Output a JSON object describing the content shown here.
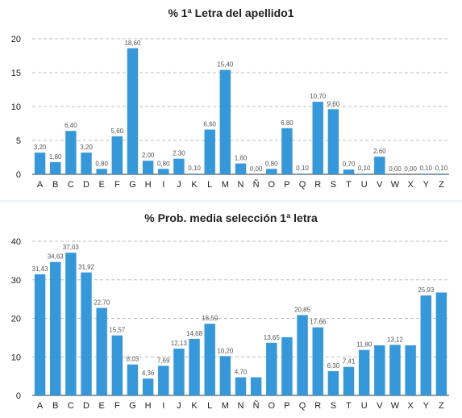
{
  "chart_data": [
    {
      "type": "bar",
      "title": "% 1ª Letra del apellido1",
      "categories": [
        "A",
        "B",
        "C",
        "D",
        "E",
        "F",
        "G",
        "H",
        "I",
        "J",
        "K",
        "L",
        "M",
        "N",
        "Ñ",
        "O",
        "P",
        "Q",
        "R",
        "S",
        "T",
        "U",
        "V",
        "W",
        "X",
        "Y",
        "Z"
      ],
      "values": [
        3.2,
        1.8,
        6.4,
        3.2,
        0.8,
        5.6,
        18.6,
        2.0,
        0.8,
        2.3,
        0.1,
        6.6,
        15.4,
        1.6,
        0.0,
        0.8,
        6.8,
        0.1,
        10.7,
        9.6,
        0.7,
        0.1,
        2.6,
        0.0,
        0.0,
        0.1,
        0.1
      ],
      "labels": [
        "3,20",
        "1,80",
        "6,40",
        "3,20",
        "0,80",
        "5,60",
        "18,60",
        "2,00",
        "0,80",
        "2,30",
        "0,10",
        "6,60",
        "15,40",
        "1,60",
        "0,00",
        "0,80",
        "6,80",
        "0,10",
        "10,70",
        "9,60",
        "0,70",
        "0,10",
        "2,60",
        "0,00",
        "0,00",
        "0,10",
        "0,10"
      ],
      "ylim": [
        0,
        20
      ],
      "yticks": [
        "0",
        "5",
        "10",
        "15",
        "20"
      ],
      "ytick_values": [
        0,
        5,
        10,
        15,
        20
      ],
      "grid": true,
      "bar_color": "#3498db"
    },
    {
      "type": "bar",
      "title": "% Prob. media selección 1ª letra",
      "categories": [
        "A",
        "B",
        "C",
        "D",
        "E",
        "F",
        "G",
        "H",
        "I",
        "J",
        "K",
        "L",
        "M",
        "N",
        "Ñ",
        "O",
        "P",
        "Q",
        "R",
        "S",
        "T",
        "U",
        "V",
        "W",
        "X",
        "Y",
        "Z"
      ],
      "values": [
        31.43,
        34.63,
        37.03,
        31.92,
        22.7,
        15.57,
        8.03,
        4.36,
        7.69,
        12.13,
        14.68,
        18.59,
        10.2,
        4.7,
        4.7,
        13.65,
        15.1,
        20.85,
        17.66,
        6.3,
        7.41,
        11.8,
        13.0,
        13.12,
        13.0,
        25.93,
        26.7
      ],
      "labels": [
        "31,43",
        "34,63",
        "37,03",
        "31,92",
        "22,70",
        "15,57",
        "8,03",
        "4,36",
        "7,69",
        "12,13",
        "14,68",
        "18,59",
        "10,20",
        "4,70",
        "",
        "13,65",
        "",
        "20,85",
        "17,66",
        "6,30",
        "7,41",
        "11,80",
        "",
        "13,12",
        "",
        "25,93",
        ""
      ],
      "ylim": [
        0,
        40
      ],
      "yticks": [
        "0",
        "10",
        "20",
        "30",
        "40"
      ],
      "ytick_values": [
        0,
        10,
        20,
        30,
        40
      ],
      "grid": true,
      "bar_color": "#3498db"
    }
  ]
}
